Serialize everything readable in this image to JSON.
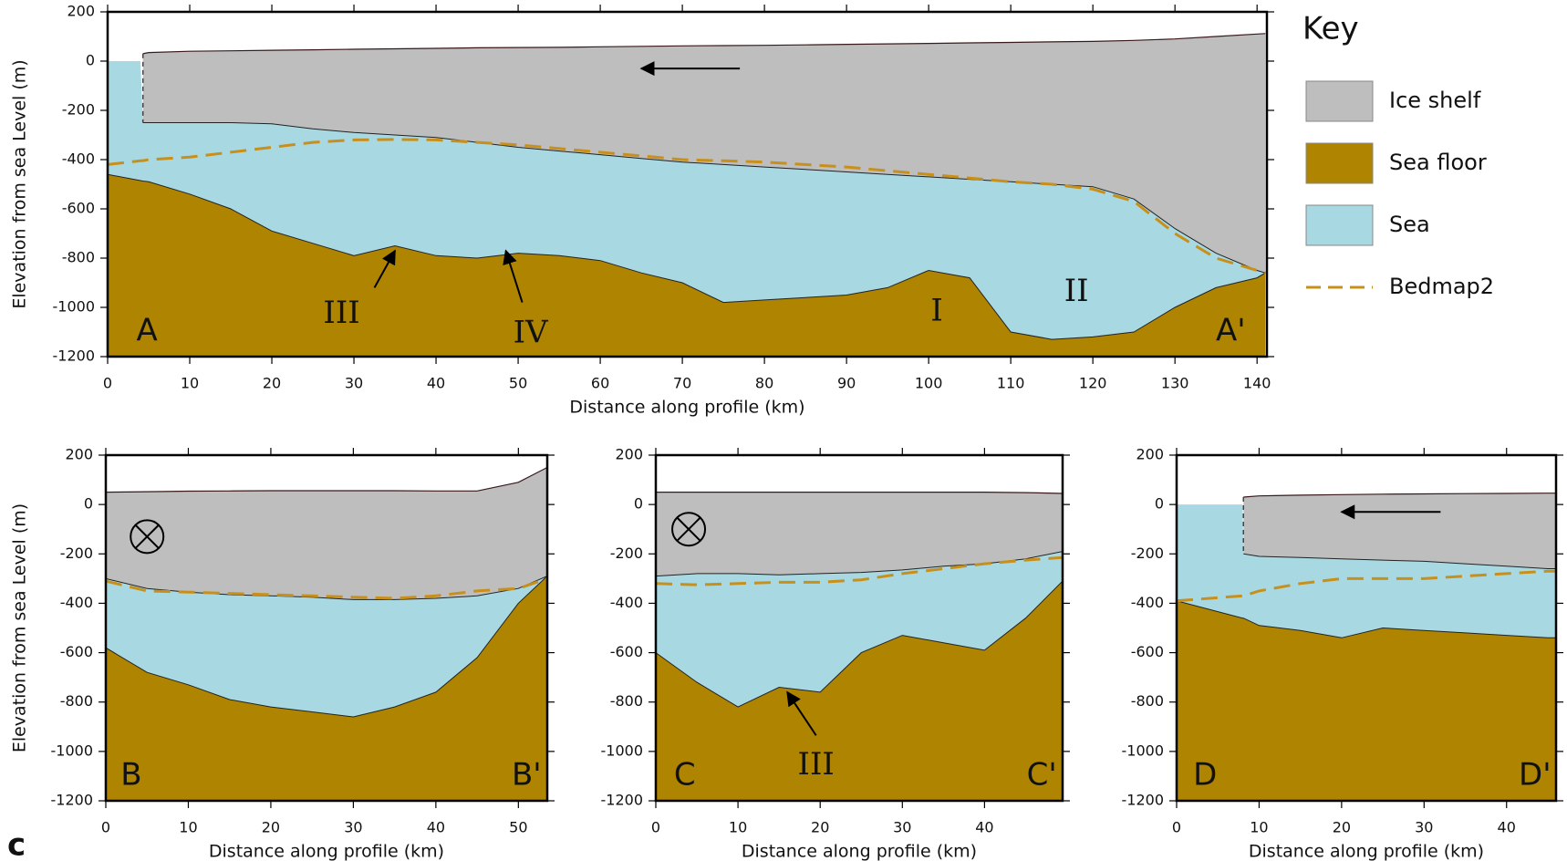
{
  "panel_label": "c",
  "key": {
    "title": "Key",
    "entries": [
      {
        "name": "Ice shelf",
        "color": "#bebebe",
        "style": "box"
      },
      {
        "name": "Sea floor",
        "color": "#ae8400",
        "style": "box"
      },
      {
        "name": "Sea",
        "color": "#a8d8e2",
        "style": "box"
      },
      {
        "name": "Bedmap2",
        "color": "#c8901a",
        "style": "dashed"
      }
    ]
  },
  "chart_data": [
    {
      "type": "profile",
      "xlabel": "Distance along profile (km)",
      "ylabel": "Elevation from sea Level (m)",
      "xlim": [
        0,
        141.2
      ],
      "ylim": [
        -1200,
        200
      ],
      "xticks": [
        0,
        10,
        20,
        30,
        40,
        50,
        60,
        70,
        80,
        90,
        100,
        110,
        120,
        130,
        140
      ],
      "yticks": [
        -1200,
        -1000,
        -800,
        -600,
        -400,
        -200,
        0,
        200
      ],
      "sea_level": 0,
      "x": [
        0,
        4,
        4.3,
        5,
        10,
        15,
        20,
        25,
        30,
        35,
        40,
        45,
        50,
        55,
        60,
        65,
        70,
        75,
        80,
        85,
        90,
        95,
        100,
        105,
        110,
        115,
        120,
        125,
        130,
        135,
        140,
        141
      ],
      "ice_surface": [
        null,
        null,
        30,
        35,
        40,
        42,
        44,
        46,
        48,
        50,
        52,
        54,
        55,
        56,
        58,
        60,
        62,
        63,
        64,
        66,
        68,
        70,
        72,
        74,
        76,
        78,
        80,
        84,
        90,
        100,
        110,
        112
      ],
      "ice_base": [
        null,
        null,
        -250,
        -250,
        -250,
        -250,
        -255,
        -275,
        -290,
        -300,
        -310,
        -330,
        -350,
        -365,
        -380,
        -395,
        -410,
        -420,
        -430,
        -440,
        -450,
        -460,
        -470,
        -480,
        -490,
        -500,
        -510,
        -560,
        -680,
        -780,
        -850,
        -860
      ],
      "sea_floor": [
        -460,
        -485,
        -487,
        -490,
        -540,
        -600,
        -690,
        -740,
        -790,
        -750,
        -790,
        -800,
        -780,
        -790,
        -810,
        -860,
        -900,
        -980,
        -970,
        -960,
        -950,
        -920,
        -850,
        -880,
        -1100,
        -1130,
        -1120,
        -1100,
        -1000,
        -920,
        -880,
        -860
      ],
      "bedmap2": [
        -420,
        -405,
        -404,
        -400,
        -390,
        -370,
        -350,
        -330,
        -320,
        -318,
        -320,
        -330,
        -340,
        -355,
        -370,
        -385,
        -400,
        -405,
        -410,
        -420,
        -430,
        -445,
        -460,
        -475,
        -490,
        -500,
        -520,
        -570,
        -700,
        -800,
        -850,
        -860
      ],
      "annotations": [
        "A",
        "A'",
        "III",
        "IV",
        "I",
        "II"
      ]
    },
    {
      "type": "profile",
      "xlabel": "Distance along profile (km)",
      "ylabel": "Elevation from sea Level (m)",
      "xlim": [
        0,
        53.5
      ],
      "ylim": [
        -1200,
        200
      ],
      "xticks": [
        0,
        10,
        20,
        30,
        40,
        50
      ],
      "yticks": [
        -1200,
        -1000,
        -800,
        -600,
        -400,
        -200,
        0,
        200
      ],
      "sea_level": 0,
      "x": [
        0,
        5,
        10,
        15,
        20,
        25,
        30,
        35,
        40,
        45,
        50,
        53.5
      ],
      "ice_surface": [
        50,
        52,
        54,
        55,
        56,
        56,
        56,
        56,
        55,
        55,
        90,
        150
      ],
      "ice_base": [
        -300,
        -340,
        -355,
        -365,
        -370,
        -375,
        -385,
        -385,
        -380,
        -370,
        -340,
        -290
      ],
      "sea_floor": [
        -580,
        -680,
        -730,
        -790,
        -820,
        -840,
        -860,
        -820,
        -760,
        -620,
        -400,
        -290
      ],
      "bedmap2": [
        -310,
        -350,
        -355,
        -360,
        -365,
        -370,
        -375,
        -380,
        -370,
        -350,
        -340,
        -300
      ],
      "annotations": [
        "B",
        "B'"
      ]
    },
    {
      "type": "profile",
      "xlabel": "Distance along profile (km)",
      "xlim": [
        0,
        49.5
      ],
      "ylim": [
        -1200,
        200
      ],
      "xticks": [
        0,
        10,
        20,
        30,
        40
      ],
      "yticks": [
        -1200,
        -1000,
        -800,
        -600,
        -400,
        -200,
        0,
        200
      ],
      "sea_level": 0,
      "x": [
        0,
        5,
        10,
        15,
        20,
        25,
        30,
        35,
        40,
        45,
        49.5
      ],
      "ice_surface": [
        50,
        50,
        50,
        50,
        50,
        50,
        50,
        50,
        50,
        48,
        45
      ],
      "ice_base": [
        -290,
        -280,
        -280,
        -285,
        -280,
        -275,
        -265,
        -250,
        -240,
        -220,
        -190
      ],
      "sea_floor": [
        -600,
        -720,
        -820,
        -740,
        -760,
        -600,
        -530,
        -560,
        -590,
        -460,
        -310
      ],
      "bedmap2": [
        -320,
        -325,
        -320,
        -315,
        -315,
        -305,
        -280,
        -260,
        -240,
        -225,
        -215
      ],
      "annotations": [
        "C",
        "C'",
        "III"
      ]
    },
    {
      "type": "profile",
      "xlabel": "Distance along profile (km)",
      "xlim": [
        0,
        46
      ],
      "ylim": [
        -1200,
        200
      ],
      "xticks": [
        0,
        10,
        20,
        30,
        40
      ],
      "yticks": [
        -1200,
        -1000,
        -800,
        -600,
        -400,
        -200,
        0,
        200
      ],
      "sea_level": 0,
      "x": [
        0,
        8,
        8.1,
        10,
        15,
        20,
        25,
        30,
        35,
        40,
        45,
        46
      ],
      "ice_surface": [
        null,
        null,
        30,
        35,
        38,
        40,
        42,
        43,
        44,
        45,
        46,
        46
      ],
      "ice_base": [
        null,
        null,
        -200,
        -210,
        -215,
        -220,
        -225,
        -230,
        -240,
        -250,
        -260,
        -260
      ],
      "sea_floor": [
        -390,
        -460,
        -460,
        -490,
        -510,
        -540,
        -500,
        -510,
        -520,
        -530,
        -540,
        -540
      ],
      "bedmap2": [
        -390,
        -370,
        -370,
        -350,
        -320,
        -300,
        -300,
        -300,
        -290,
        -280,
        -270,
        -270
      ],
      "annotations": [
        "D",
        "D'"
      ]
    }
  ]
}
